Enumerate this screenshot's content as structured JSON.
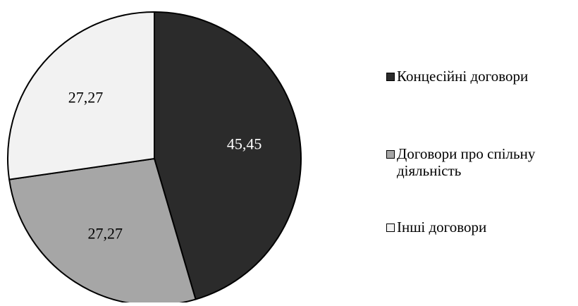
{
  "chart_data": {
    "type": "pie",
    "categories": [
      "Концесійні договори",
      "Договори про спільну діяльність",
      "Інші договори"
    ],
    "values": [
      45.45,
      27.27,
      27.27
    ],
    "data_labels": [
      "45,45",
      "27,27",
      "27,27"
    ],
    "colors": [
      "#2b2b2b",
      "#a6a6a6",
      "#f2f2f2"
    ],
    "label_colors": [
      "#ffffff",
      "#000000",
      "#000000"
    ],
    "start_angle": "12 o'clock",
    "direction": "clockwise",
    "legend_position": "right",
    "legend_items": [
      {
        "label": "Концесійні договори",
        "color": "#2b2b2b"
      },
      {
        "label": "Договори про спільну діяльність",
        "color": "#a6a6a6"
      },
      {
        "label": "Інші договори",
        "color": "#f2f2f2"
      }
    ]
  }
}
